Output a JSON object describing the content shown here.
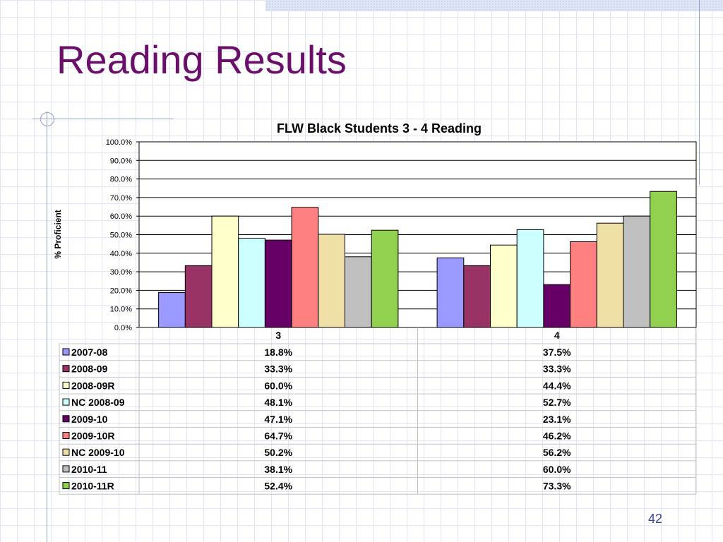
{
  "slide": {
    "title": "Reading Results",
    "page_number": "42"
  },
  "chart_data": {
    "type": "bar",
    "title": "FLW Black Students 3 - 4 Reading",
    "ylabel": "% Proficient",
    "xlabel": "",
    "ylim": [
      0,
      100
    ],
    "yticks": [
      "0.0%",
      "10.0%",
      "20.0%",
      "30.0%",
      "40.0%",
      "50.0%",
      "60.0%",
      "70.0%",
      "80.0%",
      "90.0%",
      "100.0%"
    ],
    "grid": true,
    "legend": "data-table-left",
    "categories": [
      "3",
      "4"
    ],
    "series": [
      {
        "name": "2007-08",
        "color": "#9999ff",
        "values": [
          18.8,
          37.5
        ],
        "labels": [
          "18.8%",
          "37.5%"
        ]
      },
      {
        "name": "2008-09",
        "color": "#993366",
        "values": [
          33.3,
          33.3
        ],
        "labels": [
          "33.3%",
          "33.3%"
        ]
      },
      {
        "name": "2008-09R",
        "color": "#ffffcc",
        "values": [
          60.0,
          44.4
        ],
        "labels": [
          "60.0%",
          "44.4%"
        ]
      },
      {
        "name": "NC 2008-09",
        "color": "#ccffff",
        "values": [
          48.1,
          52.7
        ],
        "labels": [
          "48.1%",
          "52.7%"
        ]
      },
      {
        "name": "2009-10",
        "color": "#660066",
        "values": [
          47.1,
          23.1
        ],
        "labels": [
          "47.1%",
          "23.1%"
        ]
      },
      {
        "name": "2009-10R",
        "color": "#ff8080",
        "values": [
          64.7,
          46.2
        ],
        "labels": [
          "64.7%",
          "46.2%"
        ]
      },
      {
        "name": "NC 2009-10",
        "color": "#f0e0a8",
        "values": [
          50.2,
          56.2
        ],
        "labels": [
          "50.2%",
          "56.2%"
        ]
      },
      {
        "name": "2010-11",
        "color": "#c0c0c0",
        "values": [
          38.1,
          60.0
        ],
        "labels": [
          "38.1%",
          "60.0%"
        ]
      },
      {
        "name": "2010-11R",
        "color": "#92d050",
        "values": [
          52.4,
          73.3
        ],
        "labels": [
          "52.4%",
          "73.3%"
        ]
      }
    ]
  }
}
